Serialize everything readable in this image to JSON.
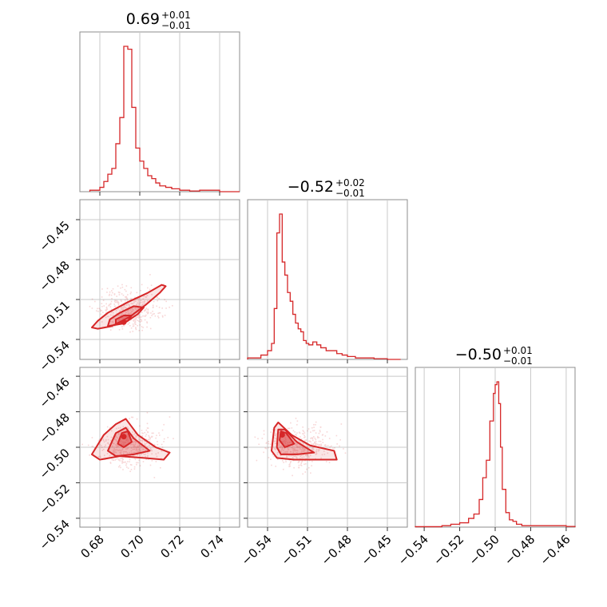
{
  "colors": {
    "series": "#d62728",
    "fill": "#d62728"
  },
  "chart_data": {
    "type": "corner",
    "grid": true,
    "parameters": [
      {
        "range": [
          0.67,
          0.75
        ],
        "ticks": [
          0.68,
          0.7,
          0.72,
          0.74
        ],
        "tick_labels": [
          "0.68",
          "0.70",
          "0.72",
          "0.74"
        ],
        "title": {
          "value": "0.69",
          "plus": "+0.01",
          "minus": "−0.01"
        },
        "histogram": {
          "bin_edges": [
            0.675,
            0.68,
            0.682,
            0.684,
            0.686,
            0.688,
            0.69,
            0.692,
            0.694,
            0.696,
            0.698,
            0.7,
            0.702,
            0.704,
            0.706,
            0.708,
            0.71,
            0.713,
            0.716,
            0.72,
            0.725,
            0.73,
            0.74,
            0.75
          ],
          "counts": [
            0.01,
            0.03,
            0.07,
            0.12,
            0.16,
            0.33,
            0.51,
            1.0,
            0.98,
            0.58,
            0.3,
            0.21,
            0.16,
            0.11,
            0.09,
            0.06,
            0.04,
            0.03,
            0.02,
            0.01,
            0.005,
            0.01,
            0.0
          ]
        }
      },
      {
        "range": [
          -0.555,
          -0.435
        ],
        "ticks": [
          -0.54,
          -0.51,
          -0.48,
          -0.45
        ],
        "tick_labels": [
          "−0.54",
          "−0.51",
          "−0.48",
          "−0.45"
        ],
        "title": {
          "value": "−0.52",
          "plus": "+0.02",
          "minus": "−0.01"
        },
        "histogram": {
          "bin_edges": [
            -0.555,
            -0.545,
            -0.54,
            -0.537,
            -0.535,
            -0.533,
            -0.531,
            -0.529,
            -0.527,
            -0.525,
            -0.523,
            -0.521,
            -0.519,
            -0.517,
            -0.515,
            -0.513,
            -0.511,
            -0.509,
            -0.506,
            -0.503,
            -0.5,
            -0.496,
            -0.492,
            -0.488,
            -0.484,
            -0.48,
            -0.474,
            -0.468,
            -0.46,
            -0.45,
            -0.44
          ],
          "counts": [
            0.01,
            0.03,
            0.06,
            0.11,
            0.35,
            0.87,
            1.0,
            0.67,
            0.58,
            0.46,
            0.4,
            0.31,
            0.25,
            0.21,
            0.19,
            0.13,
            0.11,
            0.1,
            0.12,
            0.1,
            0.08,
            0.06,
            0.06,
            0.04,
            0.03,
            0.02,
            0.01,
            0.01,
            0.005,
            0.0
          ]
        }
      },
      {
        "range": [
          -0.545,
          -0.455
        ],
        "ticks": [
          -0.54,
          -0.52,
          -0.5,
          -0.48,
          -0.46
        ],
        "tick_labels_y": [
          "−0.54",
          "−0.52",
          "−0.50",
          "−0.48",
          "−0.46"
        ],
        "tick_labels_x": [
          "−0.54",
          "−0.52",
          "−0.50",
          "−0.48",
          "−0.46"
        ],
        "title": {
          "value": "−0.50",
          "plus": "+0.01",
          "minus": "−0.01"
        },
        "histogram": {
          "bin_edges": [
            -0.545,
            -0.53,
            -0.525,
            -0.52,
            -0.515,
            -0.512,
            -0.509,
            -0.507,
            -0.505,
            -0.503,
            -0.501,
            -0.5,
            -0.499,
            -0.498,
            -0.497,
            -0.496,
            -0.494,
            -0.492,
            -0.49,
            -0.488,
            -0.485,
            -0.48,
            -0.475,
            -0.47,
            -0.46,
            -0.455
          ],
          "counts": [
            0.003,
            0.01,
            0.02,
            0.03,
            0.06,
            0.09,
            0.19,
            0.34,
            0.46,
            0.73,
            0.92,
            0.98,
            1.0,
            0.85,
            0.55,
            0.26,
            0.1,
            0.05,
            0.04,
            0.02,
            0.01,
            0.01,
            0.01,
            0.01,
            0.005
          ]
        }
      }
    ],
    "joint": [
      {
        "x_param": 0,
        "y_param": 1,
        "peak": [
          0.692,
          -0.527
        ],
        "contours": [
          [
            [
              0.679,
              -0.532
            ],
            [
              0.686,
              -0.53
            ],
            [
              0.695,
              -0.523
            ],
            [
              0.703,
              -0.514
            ],
            [
              0.71,
              -0.505
            ],
            [
              0.713,
              -0.5
            ],
            [
              0.711,
              -0.499
            ],
            [
              0.704,
              -0.505
            ],
            [
              0.694,
              -0.512
            ],
            [
              0.684,
              -0.52
            ],
            [
              0.679,
              -0.526
            ],
            [
              0.676,
              -0.531
            ]
          ],
          [
            [
              0.684,
              -0.53
            ],
            [
              0.692,
              -0.528
            ],
            [
              0.699,
              -0.521
            ],
            [
              0.702,
              -0.516
            ],
            [
              0.697,
              -0.515
            ],
            [
              0.69,
              -0.52
            ],
            [
              0.685,
              -0.525
            ]
          ],
          [
            [
              0.688,
              -0.528
            ],
            [
              0.694,
              -0.526
            ],
            [
              0.696,
              -0.522
            ],
            [
              0.692,
              -0.522
            ],
            [
              0.688,
              -0.525
            ]
          ]
        ]
      },
      {
        "x_param": 0,
        "y_param": 2,
        "peak": [
          0.692,
          -0.494
        ],
        "contours": [
          [
            [
              0.676,
              -0.504
            ],
            [
              0.682,
              -0.493
            ],
            [
              0.688,
              -0.487
            ],
            [
              0.693,
              -0.484
            ],
            [
              0.699,
              -0.493
            ],
            [
              0.708,
              -0.5
            ],
            [
              0.715,
              -0.503
            ],
            [
              0.712,
              -0.507
            ],
            [
              0.702,
              -0.506
            ],
            [
              0.69,
              -0.505
            ],
            [
              0.68,
              -0.507
            ]
          ],
          [
            [
              0.684,
              -0.502
            ],
            [
              0.688,
              -0.492
            ],
            [
              0.693,
              -0.489
            ],
            [
              0.697,
              -0.495
            ],
            [
              0.705,
              -0.502
            ],
            [
              0.697,
              -0.504
            ],
            [
              0.688,
              -0.505
            ]
          ],
          [
            [
              0.689,
              -0.498
            ],
            [
              0.691,
              -0.492
            ],
            [
              0.694,
              -0.491
            ],
            [
              0.696,
              -0.497
            ],
            [
              0.692,
              -0.5
            ]
          ]
        ]
      },
      {
        "x_param": 1,
        "y_param": 2,
        "peak": [
          -0.529,
          -0.493
        ],
        "contours": [
          [
            [
              -0.537,
              -0.502
            ],
            [
              -0.535,
              -0.489
            ],
            [
              -0.532,
              -0.486
            ],
            [
              -0.522,
              -0.493
            ],
            [
              -0.508,
              -0.499
            ],
            [
              -0.49,
              -0.502
            ],
            [
              -0.488,
              -0.507
            ],
            [
              -0.505,
              -0.507
            ],
            [
              -0.52,
              -0.507
            ],
            [
              -0.533,
              -0.506
            ]
          ],
          [
            [
              -0.533,
              -0.5
            ],
            [
              -0.532,
              -0.49
            ],
            [
              -0.527,
              -0.49
            ],
            [
              -0.518,
              -0.497
            ],
            [
              -0.505,
              -0.503
            ],
            [
              -0.518,
              -0.504
            ],
            [
              -0.53,
              -0.504
            ]
          ],
          [
            [
              -0.531,
              -0.496
            ],
            [
              -0.53,
              -0.491
            ],
            [
              -0.526,
              -0.492
            ],
            [
              -0.52,
              -0.498
            ],
            [
              -0.527,
              -0.5
            ]
          ]
        ]
      }
    ]
  }
}
